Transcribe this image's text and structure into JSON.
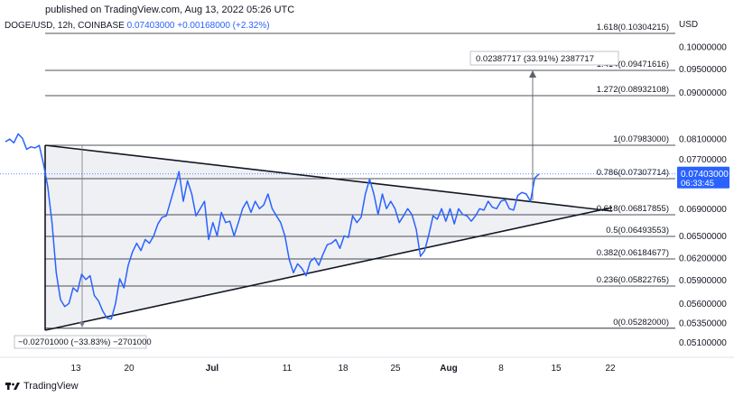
{
  "header": {
    "published": "published on TradingView.com, Aug 13, 2022 05:26 UTC",
    "symbol": "DOGE/USD, 12h, COINBASE",
    "last": "0.07403000",
    "change": "+0.00168000 (+2.32%)",
    "currency": "USD"
  },
  "footer": {
    "brand": "TradingView"
  },
  "colors": {
    "price": "#2962ff",
    "lines": "#131722",
    "fill": "#e9ebf0",
    "price_tag": "#2962ff"
  },
  "chart_data": {
    "type": "line",
    "x_ticks": [
      "13",
      "20",
      "Jul",
      "11",
      "18",
      "25",
      "Aug",
      "8",
      "15",
      "22"
    ],
    "y_ticks": [
      "0.10000000",
      "0.09500000",
      "0.09000000",
      "0.08100000",
      "0.07700000",
      "0.06900000",
      "0.06500000",
      "0.06200000",
      "0.05900000",
      "0.05600000",
      "0.05350000",
      "0.05100000"
    ],
    "fib_levels": [
      {
        "label": "1.618(0.10304215)",
        "value": 0.10304215
      },
      {
        "label": "1.414(0.09471616)",
        "value": 0.09471616
      },
      {
        "label": "1.272(0.08932108)",
        "value": 0.08932108
      },
      {
        "label": "1(0.07983000)",
        "value": 0.07983
      },
      {
        "label": "0.786(0.07307714)",
        "value": 0.07307714
      },
      {
        "label": "0.618(0.06817855)",
        "value": 0.06817855
      },
      {
        "label": "0.5(0.06493553)",
        "value": 0.06493553
      },
      {
        "label": "0.382(0.06184677)",
        "value": 0.06184677
      },
      {
        "label": "0.236(0.05822765)",
        "value": 0.05822765
      },
      {
        "label": "0(0.05282000)",
        "value": 0.05282
      }
    ],
    "annotations": {
      "drop": "−0.02701000 (−33.83%) −2701000",
      "rise": "0.02387717 (33.91%) 2387717"
    },
    "price_tag": {
      "price": "0.07403000",
      "countdown": "06:33:45"
    },
    "series": [
      {
        "values": [
          0.0805,
          0.081,
          0.0803,
          0.082,
          0.0812,
          0.079,
          0.0795,
          0.0793,
          0.0798,
          0.076,
          0.072,
          0.067,
          0.06,
          0.0565,
          0.0556,
          0.056,
          0.058,
          0.0575,
          0.0598,
          0.0591,
          0.0596,
          0.057,
          0.0563,
          0.055,
          0.0541,
          0.054,
          0.056,
          0.0592,
          0.058,
          0.061,
          0.0628,
          0.064,
          0.063,
          0.0645,
          0.064,
          0.065,
          0.0668,
          0.0678,
          0.068,
          0.07,
          0.072,
          0.0745,
          0.07,
          0.0728,
          0.071,
          0.068,
          0.069,
          0.07,
          0.0645,
          0.067,
          0.065,
          0.0685,
          0.067,
          0.0672,
          0.065,
          0.067,
          0.069,
          0.07,
          0.0685,
          0.07,
          0.069,
          0.0695,
          0.071,
          0.069,
          0.068,
          0.067,
          0.065,
          0.0618,
          0.06,
          0.0612,
          0.0606,
          0.0596,
          0.0615,
          0.062,
          0.061,
          0.0625,
          0.0638,
          0.064,
          0.0645,
          0.0633,
          0.065,
          0.0648,
          0.068,
          0.067,
          0.0678,
          0.071,
          0.073,
          0.071,
          0.0682,
          0.071,
          0.069,
          0.07,
          0.069,
          0.067,
          0.068,
          0.069,
          0.0682,
          0.066,
          0.0622,
          0.063,
          0.0652,
          0.068,
          0.0675,
          0.069,
          0.0672,
          0.069,
          0.0668,
          0.069,
          0.0682,
          0.068,
          0.0672,
          0.068,
          0.069,
          0.0688,
          0.07,
          0.0692,
          0.069,
          0.07,
          0.0702,
          0.069,
          0.0688,
          0.0708,
          0.0712,
          0.071,
          0.07,
          0.0732,
          0.074
        ]
      }
    ]
  }
}
